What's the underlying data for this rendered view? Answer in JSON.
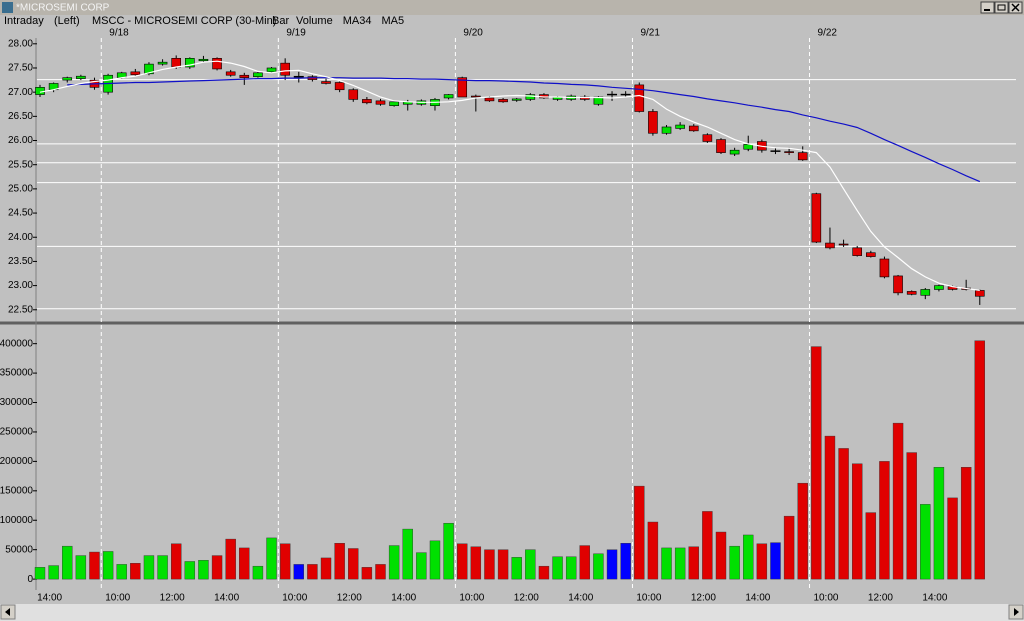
{
  "window": {
    "title": "*MICROSEMI CORP"
  },
  "header": {
    "labels": [
      "Intraday",
      "(Left)",
      "Bar"
    ]
  },
  "chart_data": [
    {
      "type": "candlestick",
      "title": "MSCC - MICROSEMI CORP (30-Min)",
      "categories": [
        null,
        "14:00",
        null,
        null,
        null,
        null,
        "10:00",
        null,
        null,
        null,
        "12:00",
        null,
        null,
        null,
        "14:00",
        null,
        null,
        null,
        null,
        "10:00",
        null,
        null,
        null,
        "12:00",
        null,
        null,
        null,
        "14:00",
        null,
        null,
        null,
        null,
        "10:00",
        null,
        null,
        null,
        "12:00",
        null,
        null,
        null,
        "14:00",
        null,
        null,
        null,
        null,
        "10:00",
        null,
        null,
        null,
        "12:00",
        null,
        null,
        null,
        "14:00",
        null,
        null,
        null,
        null,
        "10:00",
        null,
        null,
        null,
        "12:00",
        null,
        null,
        null,
        "14:00",
        null,
        null,
        null
      ],
      "date_labels": [
        null,
        null,
        null,
        null,
        null,
        "9/18",
        null,
        null,
        null,
        null,
        null,
        null,
        null,
        null,
        null,
        null,
        null,
        null,
        "9/19",
        null,
        null,
        null,
        null,
        null,
        null,
        null,
        null,
        null,
        null,
        null,
        null,
        "9/20",
        null,
        null,
        null,
        null,
        null,
        null,
        null,
        null,
        null,
        null,
        null,
        null,
        "9/21",
        null,
        null,
        null,
        null,
        null,
        null,
        null,
        null,
        null,
        null,
        null,
        null,
        "9/22",
        null,
        null,
        null,
        null,
        null,
        null,
        null,
        null,
        null,
        null,
        null,
        null
      ],
      "open": [
        26.95,
        27.05,
        27.25,
        27.28,
        27.25,
        27.0,
        27.3,
        27.42,
        27.38,
        27.58,
        27.7,
        27.52,
        27.65,
        27.7,
        27.42,
        27.35,
        27.32,
        27.42,
        27.6,
        27.32,
        27.32,
        27.22,
        27.2,
        27.05,
        26.85,
        26.82,
        26.72,
        26.75,
        26.75,
        26.72,
        26.88,
        27.3,
        26.92,
        26.88,
        26.85,
        26.83,
        26.85,
        26.95,
        26.85,
        26.85,
        26.9,
        26.75,
        26.95,
        26.95,
        27.15,
        26.6,
        26.15,
        26.25,
        26.3,
        26.12,
        26.02,
        25.72,
        25.82,
        25.98,
        25.78,
        25.77,
        25.75,
        24.9,
        23.88,
        23.86,
        23.78,
        23.68,
        23.55,
        23.2,
        22.88,
        22.8,
        22.92,
        22.98,
        22.95,
        22.9
      ],
      "high": [
        27.15,
        27.2,
        27.32,
        27.36,
        27.3,
        27.38,
        27.42,
        27.48,
        27.62,
        27.68,
        27.76,
        27.72,
        27.75,
        27.72,
        27.46,
        27.4,
        27.42,
        27.52,
        27.7,
        27.42,
        27.35,
        27.28,
        27.22,
        27.08,
        26.9,
        26.86,
        26.82,
        26.84,
        26.85,
        26.88,
        26.96,
        27.32,
        26.95,
        26.92,
        26.88,
        26.88,
        26.98,
        26.98,
        26.92,
        26.95,
        26.94,
        26.92,
        27.02,
        27.02,
        27.2,
        26.65,
        26.32,
        26.38,
        26.34,
        26.15,
        26.05,
        25.85,
        26.1,
        26.02,
        25.85,
        25.85,
        25.88,
        24.92,
        24.2,
        23.95,
        23.82,
        23.72,
        23.6,
        23.22,
        22.9,
        22.95,
        23.02,
        23.0,
        23.12,
        22.92
      ],
      "low": [
        26.9,
        27.0,
        27.2,
        27.25,
        27.05,
        26.95,
        27.28,
        27.33,
        27.35,
        27.55,
        27.48,
        27.48,
        27.62,
        27.45,
        27.32,
        27.15,
        27.3,
        27.4,
        27.25,
        27.2,
        27.22,
        27.16,
        27.0,
        26.8,
        26.75,
        26.72,
        26.7,
        26.62,
        26.72,
        26.62,
        26.85,
        26.9,
        26.6,
        26.8,
        26.78,
        26.8,
        26.82,
        26.86,
        26.82,
        26.82,
        26.82,
        26.72,
        26.82,
        26.9,
        26.58,
        26.1,
        26.12,
        26.22,
        26.18,
        25.95,
        25.72,
        25.68,
        25.78,
        25.75,
        25.72,
        25.7,
        25.58,
        23.88,
        23.75,
        23.8,
        23.6,
        23.58,
        23.15,
        22.8,
        22.8,
        22.72,
        22.88,
        22.9,
        22.9,
        22.6
      ],
      "close": [
        27.1,
        27.18,
        27.3,
        27.33,
        27.1,
        27.35,
        27.4,
        27.36,
        27.58,
        27.62,
        27.52,
        27.7,
        27.68,
        27.48,
        27.35,
        27.3,
        27.4,
        27.5,
        27.35,
        27.32,
        27.26,
        27.18,
        27.05,
        26.85,
        26.78,
        26.75,
        26.8,
        26.8,
        26.82,
        26.85,
        26.95,
        26.9,
        26.9,
        26.82,
        26.8,
        26.86,
        26.95,
        26.88,
        26.9,
        26.92,
        26.85,
        26.9,
        26.95,
        26.95,
        26.6,
        26.15,
        26.28,
        26.32,
        26.2,
        25.98,
        25.75,
        25.8,
        25.92,
        25.8,
        25.78,
        25.75,
        25.6,
        23.9,
        23.78,
        23.84,
        23.62,
        23.6,
        23.18,
        22.85,
        22.82,
        22.92,
        23.0,
        22.92,
        22.92,
        22.78
      ],
      "up_color": "#00e000",
      "down_color": "#e00000",
      "flat_color": "#000000",
      "series": [
        {
          "name": "MA34",
          "color": "#1010c8",
          "values": [
            null,
            null,
            27.15,
            27.16,
            27.17,
            27.18,
            27.19,
            27.2,
            27.2,
            27.21,
            27.22,
            27.23,
            27.24,
            27.25,
            27.26,
            27.27,
            27.28,
            27.28,
            27.29,
            27.29,
            27.3,
            27.3,
            27.3,
            27.29,
            27.29,
            27.29,
            27.28,
            27.28,
            27.27,
            27.27,
            27.26,
            27.25,
            27.24,
            27.24,
            27.23,
            27.22,
            27.21,
            27.19,
            27.18,
            27.16,
            27.15,
            27.13,
            27.1,
            27.08,
            27.06,
            27.03,
            26.99,
            26.95,
            26.91,
            26.86,
            26.82,
            26.78,
            26.73,
            26.69,
            26.64,
            26.6,
            26.53,
            26.47,
            26.4,
            26.34,
            26.27,
            26.15,
            26.02,
            25.9,
            25.77,
            25.65,
            25.52,
            25.4,
            25.27,
            25.15
          ]
        },
        {
          "name": "MA5",
          "color": "#ffffff",
          "values": [
            27.0,
            27.05,
            27.12,
            27.18,
            27.22,
            27.25,
            27.3,
            27.33,
            27.4,
            27.47,
            27.52,
            27.56,
            27.62,
            27.64,
            27.6,
            27.53,
            27.43,
            27.4,
            27.44,
            27.45,
            27.38,
            27.32,
            27.24,
            27.14,
            27.02,
            26.9,
            26.82,
            26.8,
            26.79,
            26.79,
            26.8,
            26.83,
            26.88,
            26.9,
            26.92,
            26.93,
            26.92,
            26.9,
            26.9,
            26.89,
            26.89,
            26.89,
            26.88,
            26.9,
            26.93,
            26.85,
            26.65,
            26.5,
            26.38,
            26.28,
            26.15,
            26.02,
            25.93,
            25.88,
            25.85,
            25.84,
            25.8,
            25.75,
            25.45,
            25.0,
            24.55,
            24.12,
            23.8,
            23.58,
            23.35,
            23.18,
            23.05,
            22.98,
            22.94,
            22.9
          ]
        }
      ],
      "reference_lines": [
        27.26,
        25.93,
        25.54,
        25.13,
        23.81,
        22.52
      ],
      "ylim": [
        22.33,
        28.12
      ],
      "yticks": [
        {
          "value": 28,
          "label": "28.00"
        },
        {
          "value": 27.5,
          "label": "27.50"
        },
        {
          "value": 27,
          "label": "27.00"
        },
        {
          "value": 26.5,
          "label": "26.50"
        },
        {
          "value": 26,
          "label": "26.00"
        },
        {
          "value": 25.5,
          "label": "25.50"
        },
        {
          "value": 25,
          "label": "25.00"
        },
        {
          "value": 24.5,
          "label": "24.50"
        },
        {
          "value": 24,
          "label": "24.00"
        },
        {
          "value": 23.5,
          "label": "23.50"
        },
        {
          "value": 23,
          "label": "23.00"
        },
        {
          "value": 22.5,
          "label": "22.50"
        }
      ]
    },
    {
      "type": "bar",
      "series": [
        {
          "name": "Volume",
          "color": "#0000ff",
          "values": [
            20000,
            23000,
            56000,
            40000,
            46000,
            47000,
            25000,
            27000,
            40000,
            40000,
            60000,
            30000,
            32000,
            40000,
            68000,
            53000,
            22000,
            70000,
            60000,
            25000,
            25000,
            36000,
            61000,
            52000,
            20000,
            25000,
            57000,
            85000,
            45000,
            65000,
            95000,
            60000,
            55000,
            50000,
            50000,
            37000,
            50000,
            22000,
            38000,
            38000,
            57000,
            43000,
            50000,
            61000,
            158000,
            97000,
            53000,
            53000,
            55000,
            115000,
            80000,
            56000,
            75000,
            60000,
            62000,
            107000,
            163000,
            395000,
            243000,
            222000,
            196000,
            113000,
            200000,
            265000,
            215000,
            127000,
            190000,
            138000,
            190000,
            405000
          ]
        }
      ],
      "ylim": [
        -10000,
        430000
      ],
      "yticks": [
        0,
        50000,
        100000,
        150000,
        200000,
        250000,
        300000,
        350000,
        400000
      ]
    }
  ]
}
